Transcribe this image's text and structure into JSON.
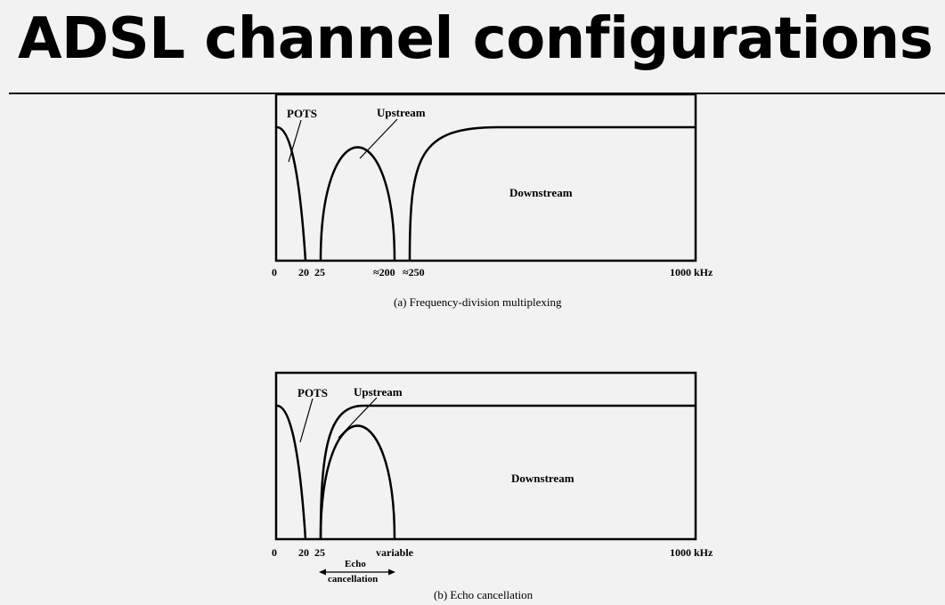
{
  "slide": {
    "title": "ADSL channel configurations"
  },
  "diagram_a": {
    "caption": "(a) Frequency-division multiplexing",
    "labels": {
      "pots": "POTS",
      "upstream": "Upstream",
      "downstream": "Downstream"
    },
    "ticks": [
      "0",
      "20",
      "25",
      "≈200",
      "≈250",
      "1000 kHz"
    ]
  },
  "diagram_b": {
    "caption": "(b) Echo cancellation",
    "labels": {
      "pots": "POTS",
      "upstream": "Upstream",
      "downstream": "Downstream",
      "echo_line1": "Echo",
      "echo_line2": "cancellation"
    },
    "ticks": [
      "0",
      "20",
      "25",
      "variable",
      "1000 kHz"
    ]
  }
}
